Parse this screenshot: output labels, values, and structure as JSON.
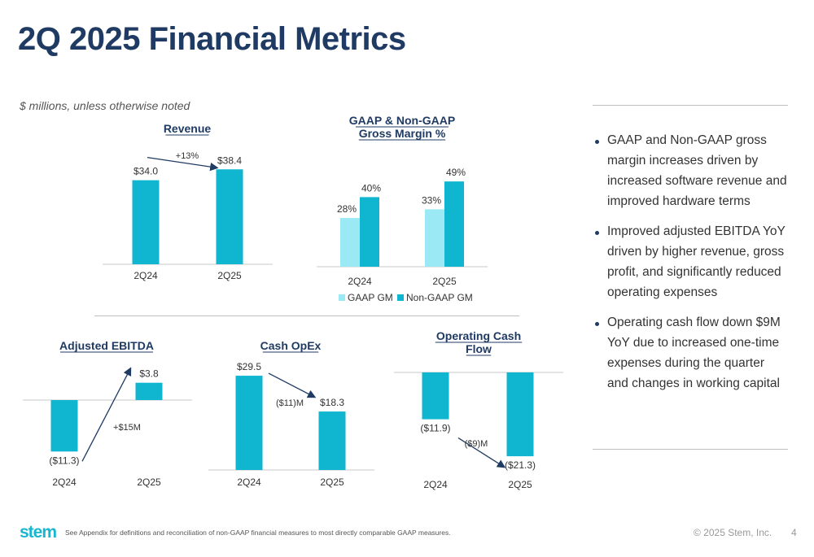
{
  "slide": {
    "title": "2Q 2025 Financial Metrics",
    "units_note": "$ millions, unless otherwise noted"
  },
  "colors": {
    "title": "#1f3a63",
    "bar_primary": "#10b6d0",
    "bar_light": "#9ae9f5",
    "arrow": "#1f3a63"
  },
  "chart_data": [
    {
      "id": "revenue",
      "type": "bar",
      "title": "Revenue",
      "categories": [
        "2Q24",
        "2Q25"
      ],
      "series": [
        {
          "values": [
            34.0,
            38.4
          ]
        }
      ],
      "value_labels": [
        "$34.0",
        "$38.4"
      ],
      "annotation": "+13%"
    },
    {
      "id": "gross-margin",
      "type": "bar",
      "title": "GAAP & Non-GAAP Gross Margin %",
      "categories": [
        "2Q24",
        "2Q25"
      ],
      "series": [
        {
          "name": "GAAP GM",
          "values": [
            28,
            33
          ],
          "labels": [
            "28%",
            "33%"
          ]
        },
        {
          "name": "Non-GAAP GM",
          "values": [
            40,
            49
          ],
          "labels": [
            "40%",
            "49%"
          ]
        }
      ],
      "legend": "bottom"
    },
    {
      "id": "adjusted-ebitda",
      "type": "bar",
      "title": "Adjusted EBITDA",
      "categories": [
        "2Q24",
        "2Q25"
      ],
      "series": [
        {
          "values": [
            -11.3,
            3.8
          ]
        }
      ],
      "value_labels": [
        "($11.3)",
        "$3.8"
      ],
      "annotation": "+$15M"
    },
    {
      "id": "cash-opex",
      "type": "bar",
      "title": "Cash OpEx",
      "categories": [
        "2Q24",
        "2Q25"
      ],
      "series": [
        {
          "values": [
            29.5,
            18.3
          ]
        }
      ],
      "value_labels": [
        "$29.5",
        "$18.3"
      ],
      "annotation": "($11)M"
    },
    {
      "id": "operating-cash-flow",
      "type": "bar",
      "title": "Operating Cash Flow",
      "categories": [
        "2Q24",
        "2Q25"
      ],
      "series": [
        {
          "values": [
            -11.9,
            -21.3
          ]
        }
      ],
      "value_labels": [
        "($11.9)",
        "($21.3)"
      ],
      "annotation": "($9)M"
    }
  ],
  "bullets": [
    "GAAP and Non-GAAP gross margin increases driven by increased software revenue and improved hardware terms",
    "Improved adjusted EBITDA YoY driven by higher revenue, gross profit, and significantly reduced operating expenses",
    "Operating cash flow down $9M YoY due to increased one-time expenses during the quarter and changes in working capital"
  ],
  "footer": {
    "logo": "stem",
    "footnote": "See Appendix for definitions and reconciliation of non-GAAP financial measures to most directly comparable GAAP measures.",
    "copyright": "© 2025 Stem, Inc.",
    "page_number": "4"
  }
}
